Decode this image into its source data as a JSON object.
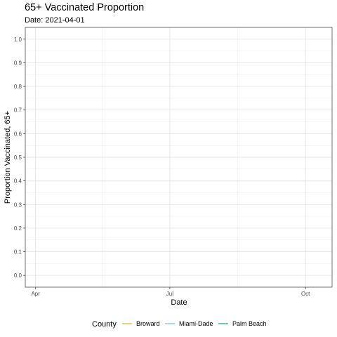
{
  "chart_data": {
    "type": "line",
    "title": "65+ Vaccinated Proportion",
    "subtitle": "Date: 2021-04-01",
    "xlabel": "Date",
    "ylabel": "Proportion Vaccinated, 65+",
    "x_range": [
      "2021-03-25",
      "2021-10-19"
    ],
    "x_ticks": [
      {
        "date": "2021-04-01",
        "label": "Apr"
      },
      {
        "date": "2021-07-01",
        "label": "Jul"
      },
      {
        "date": "2021-10-01",
        "label": "Oct"
      }
    ],
    "x_minor": [
      "2021-05-16",
      "2021-08-16"
    ],
    "ylim": [
      -0.05,
      1.05
    ],
    "y_ticks": [
      0.0,
      0.1,
      0.2,
      0.3,
      0.4,
      0.5,
      0.6,
      0.7,
      0.8,
      0.9,
      1.0
    ],
    "y_tick_labels": [
      "0.0",
      "0.1",
      "0.2",
      "0.3",
      "0.4",
      "0.5",
      "0.6",
      "0.7",
      "0.8",
      "0.9",
      "1.0"
    ],
    "grid": true,
    "legend_title": "County",
    "legend_position": "bottom",
    "series": [
      {
        "name": "Broward",
        "color": "#E69F00",
        "x": [],
        "y": []
      },
      {
        "name": "Miami-Dade",
        "color": "#56B4E9",
        "x": [],
        "y": []
      },
      {
        "name": "Palm Beach",
        "color": "#009E73",
        "x": [],
        "y": []
      }
    ]
  }
}
